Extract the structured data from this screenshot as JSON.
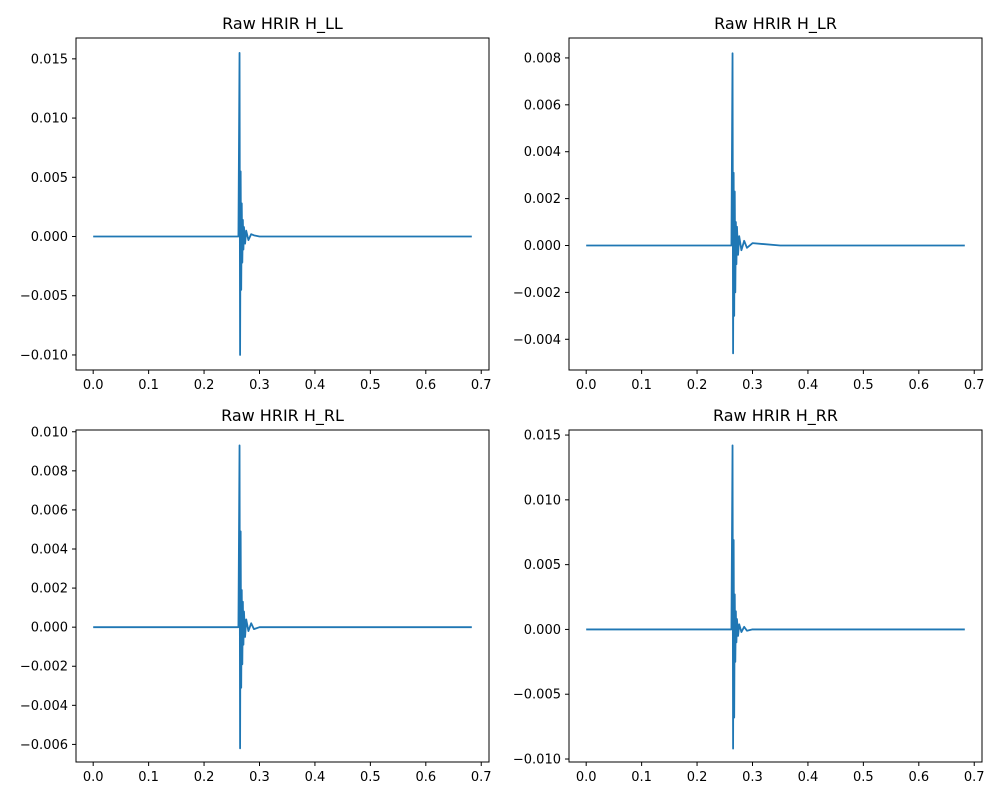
{
  "colors": {
    "series": "#1f77b4",
    "axes": "#000000",
    "background": "#ffffff"
  },
  "chart_data": [
    {
      "type": "line",
      "title": "Raw HRIR H_LL",
      "xlabel": "",
      "ylabel": "",
      "xlim": [
        -0.031,
        0.714
      ],
      "ylim": [
        -0.01127,
        0.01676
      ],
      "xticks": [
        0.0,
        0.1,
        0.2,
        0.3,
        0.4,
        0.5,
        0.6,
        0.7
      ],
      "xtick_labels": [
        "0.0",
        "0.1",
        "0.2",
        "0.3",
        "0.4",
        "0.5",
        "0.6",
        "0.7"
      ],
      "yticks": [
        -0.01,
        -0.005,
        0.0,
        0.005,
        0.01,
        0.015
      ],
      "ytick_labels": [
        "−0.010",
        "−0.005",
        "0.000",
        "0.005",
        "0.010",
        "0.015"
      ],
      "grid": false,
      "series": [
        {
          "x": [
            0.0,
            0.1,
            0.2,
            0.25,
            0.262,
            0.264,
            0.265,
            0.266,
            0.267,
            0.268,
            0.269,
            0.27,
            0.271,
            0.272,
            0.274,
            0.276,
            0.28,
            0.285,
            0.29,
            0.3,
            0.35,
            0.4,
            0.5,
            0.6,
            0.683
          ],
          "y": [
            0.0,
            0.0,
            0.0,
            0.0,
            0.0,
            0.0155,
            -0.01,
            0.0055,
            -0.0045,
            0.0028,
            -0.0022,
            0.0014,
            -0.0011,
            0.0008,
            -0.0006,
            0.0005,
            -0.0003,
            0.0002,
            0.0001,
            0.0,
            0.0,
            0.0,
            0.0,
            0.0,
            0.0
          ]
        }
      ]
    },
    {
      "type": "line",
      "title": "Raw HRIR H_LR",
      "xlabel": "",
      "ylabel": "",
      "xlim": [
        -0.031,
        0.714
      ],
      "ylim": [
        -0.00531,
        0.00885
      ],
      "xticks": [
        0.0,
        0.1,
        0.2,
        0.3,
        0.4,
        0.5,
        0.6,
        0.7
      ],
      "xtick_labels": [
        "0.0",
        "0.1",
        "0.2",
        "0.3",
        "0.4",
        "0.5",
        "0.6",
        "0.7"
      ],
      "yticks": [
        -0.004,
        -0.002,
        0.0,
        0.002,
        0.004,
        0.006,
        0.008
      ],
      "ytick_labels": [
        "−0.004",
        "−0.002",
        "0.000",
        "0.002",
        "0.004",
        "0.006",
        "0.008"
      ],
      "grid": false,
      "series": [
        {
          "x": [
            0.0,
            0.1,
            0.2,
            0.25,
            0.262,
            0.264,
            0.265,
            0.266,
            0.267,
            0.268,
            0.269,
            0.27,
            0.271,
            0.272,
            0.274,
            0.276,
            0.28,
            0.285,
            0.29,
            0.3,
            0.35,
            0.4,
            0.5,
            0.6,
            0.683
          ],
          "y": [
            0.0,
            0.0,
            0.0,
            0.0,
            0.0,
            0.0082,
            -0.0046,
            0.0031,
            -0.003,
            0.0023,
            -0.002,
            0.001,
            -0.0008,
            0.0008,
            -0.0004,
            0.0004,
            -0.0002,
            0.0002,
            -0.0001,
            0.0001,
            0.0,
            0.0,
            0.0,
            0.0,
            0.0
          ]
        }
      ]
    },
    {
      "type": "line",
      "title": "Raw HRIR H_RL",
      "xlabel": "",
      "ylabel": "",
      "xlim": [
        -0.031,
        0.714
      ],
      "ylim": [
        -0.0069,
        0.01009
      ],
      "xticks": [
        0.0,
        0.1,
        0.2,
        0.3,
        0.4,
        0.5,
        0.6,
        0.7
      ],
      "xtick_labels": [
        "0.0",
        "0.1",
        "0.2",
        "0.3",
        "0.4",
        "0.5",
        "0.6",
        "0.7"
      ],
      "yticks": [
        -0.006,
        -0.004,
        -0.002,
        0.0,
        0.002,
        0.004,
        0.006,
        0.008,
        0.01
      ],
      "ytick_labels": [
        "−0.006",
        "−0.004",
        "−0.002",
        "0.000",
        "0.002",
        "0.004",
        "0.006",
        "0.008",
        "0.010"
      ],
      "grid": false,
      "series": [
        {
          "x": [
            0.0,
            0.1,
            0.2,
            0.25,
            0.262,
            0.264,
            0.265,
            0.266,
            0.267,
            0.268,
            0.269,
            0.27,
            0.271,
            0.272,
            0.274,
            0.276,
            0.28,
            0.285,
            0.29,
            0.3,
            0.35,
            0.4,
            0.5,
            0.6,
            0.683
          ],
          "y": [
            0.0,
            0.0,
            0.0,
            0.0,
            0.0,
            0.0093,
            -0.0062,
            0.0049,
            -0.0031,
            0.0019,
            -0.0019,
            0.0013,
            -0.0009,
            0.0008,
            -0.0005,
            0.0004,
            -0.0002,
            0.0002,
            -0.0001,
            0.0,
            0.0,
            0.0,
            0.0,
            0.0,
            0.0
          ]
        }
      ]
    },
    {
      "type": "line",
      "title": "Raw HRIR H_RR",
      "xlabel": "",
      "ylabel": "",
      "xlim": [
        -0.031,
        0.714
      ],
      "ylim": [
        -0.01023,
        0.01539
      ],
      "xticks": [
        0.0,
        0.1,
        0.2,
        0.3,
        0.4,
        0.5,
        0.6,
        0.7
      ],
      "xtick_labels": [
        "0.0",
        "0.1",
        "0.2",
        "0.3",
        "0.4",
        "0.5",
        "0.6",
        "0.7"
      ],
      "yticks": [
        -0.01,
        -0.005,
        0.0,
        0.005,
        0.01,
        0.015
      ],
      "ytick_labels": [
        "−0.010",
        "−0.005",
        "0.000",
        "0.005",
        "0.010",
        "0.015"
      ],
      "grid": false,
      "series": [
        {
          "x": [
            0.0,
            0.1,
            0.2,
            0.25,
            0.262,
            0.264,
            0.265,
            0.266,
            0.267,
            0.268,
            0.269,
            0.27,
            0.271,
            0.272,
            0.274,
            0.276,
            0.28,
            0.285,
            0.29,
            0.3,
            0.35,
            0.4,
            0.5,
            0.6,
            0.683
          ],
          "y": [
            0.0,
            0.0,
            0.0,
            0.0,
            0.0,
            0.0142,
            -0.0092,
            0.0069,
            -0.0068,
            0.0027,
            -0.0025,
            0.0014,
            -0.001,
            0.0008,
            -0.0005,
            0.0004,
            -0.0002,
            0.0002,
            -0.0001,
            0.0,
            0.0,
            0.0,
            0.0,
            0.0,
            0.0
          ]
        }
      ]
    }
  ]
}
